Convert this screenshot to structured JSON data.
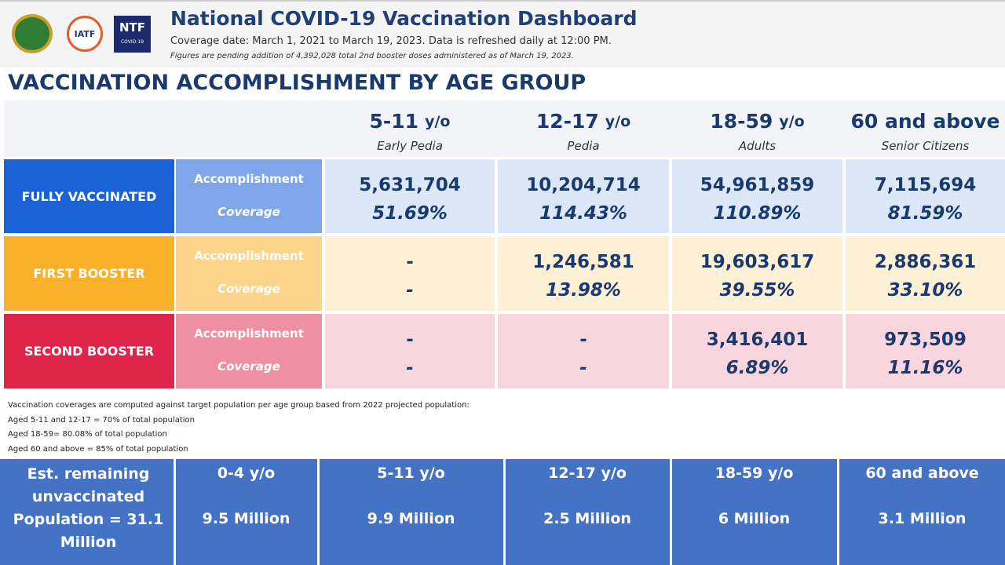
{
  "header": {
    "logos": [
      "IATF",
      "NTF",
      "COVID-19"
    ],
    "title": "National COVID-19 Vaccination Dashboard",
    "coverage": "Coverage date: March 1, 2021 to March 19, 2023. Data is refreshed daily at 12:00 PM.",
    "note": "Figures are pending addition of 4,392,028 total 2nd booster doses administered as of March 19, 2023."
  },
  "section_title": "VACCINATION ACCOMPLISHMENT BY AGE GROUP",
  "table": {
    "columns": [
      {
        "group": "5-11",
        "unit": "y/o",
        "label": "Early Pedia"
      },
      {
        "group": "12-17",
        "unit": "y/o",
        "label": "Pedia"
      },
      {
        "group": "18-59",
        "unit": "y/o",
        "label": "Adults"
      },
      {
        "group": "60 and above",
        "label": "Senior Citizens"
      }
    ],
    "rows": [
      {
        "label": "FULLY VACCINATED",
        "metrics": [
          "Accomplishment",
          "Coverage"
        ],
        "cells": [
          [
            "5,631,704",
            "51.69%"
          ],
          [
            "10,204,714",
            "114.43%"
          ],
          [
            "54,961,859",
            "110.89%"
          ],
          [
            "7,115,694",
            "81.59%"
          ]
        ]
      },
      {
        "label": "FIRST BOOSTER",
        "metrics": [
          "Accomplishment",
          "Coverage"
        ],
        "cells": [
          [
            "-",
            "-"
          ],
          [
            "1,246,581",
            "13.98%"
          ],
          [
            "19,603,617",
            "39.55%"
          ],
          [
            "2,886,361",
            "33.10%"
          ]
        ]
      },
      {
        "label": "SECOND BOOSTER",
        "metrics": [
          "Accomplishment",
          "Coverage"
        ],
        "cells": [
          [
            "-",
            "-"
          ],
          [
            "-",
            "-"
          ],
          [
            "3,416,401",
            "6.89%"
          ],
          [
            "973,509",
            "11.16%"
          ]
        ]
      }
    ]
  },
  "notes": [
    "Vaccination coverages are computed against target population per age group based from 2022 projected population:",
    "Aged 5-11 and 12-17 = 70% of total population",
    "Aged 18-59= 80.08% of total population",
    "Aged 60 and above = 85% of total population"
  ],
  "remaining": {
    "label": "Est. remaining unvaccinated Population = 31.1 Million",
    "groups": [
      {
        "group": "0-4 y/o",
        "value": "9.5 Million"
      },
      {
        "group": "5-11 y/o",
        "value": "9.9 Million"
      },
      {
        "group": "12-17 y/o",
        "value": "2.5 Million"
      },
      {
        "group": "18-59 y/o",
        "value": "6 Million"
      },
      {
        "group": "60 and above",
        "value": "3.1 Million"
      }
    ]
  }
}
